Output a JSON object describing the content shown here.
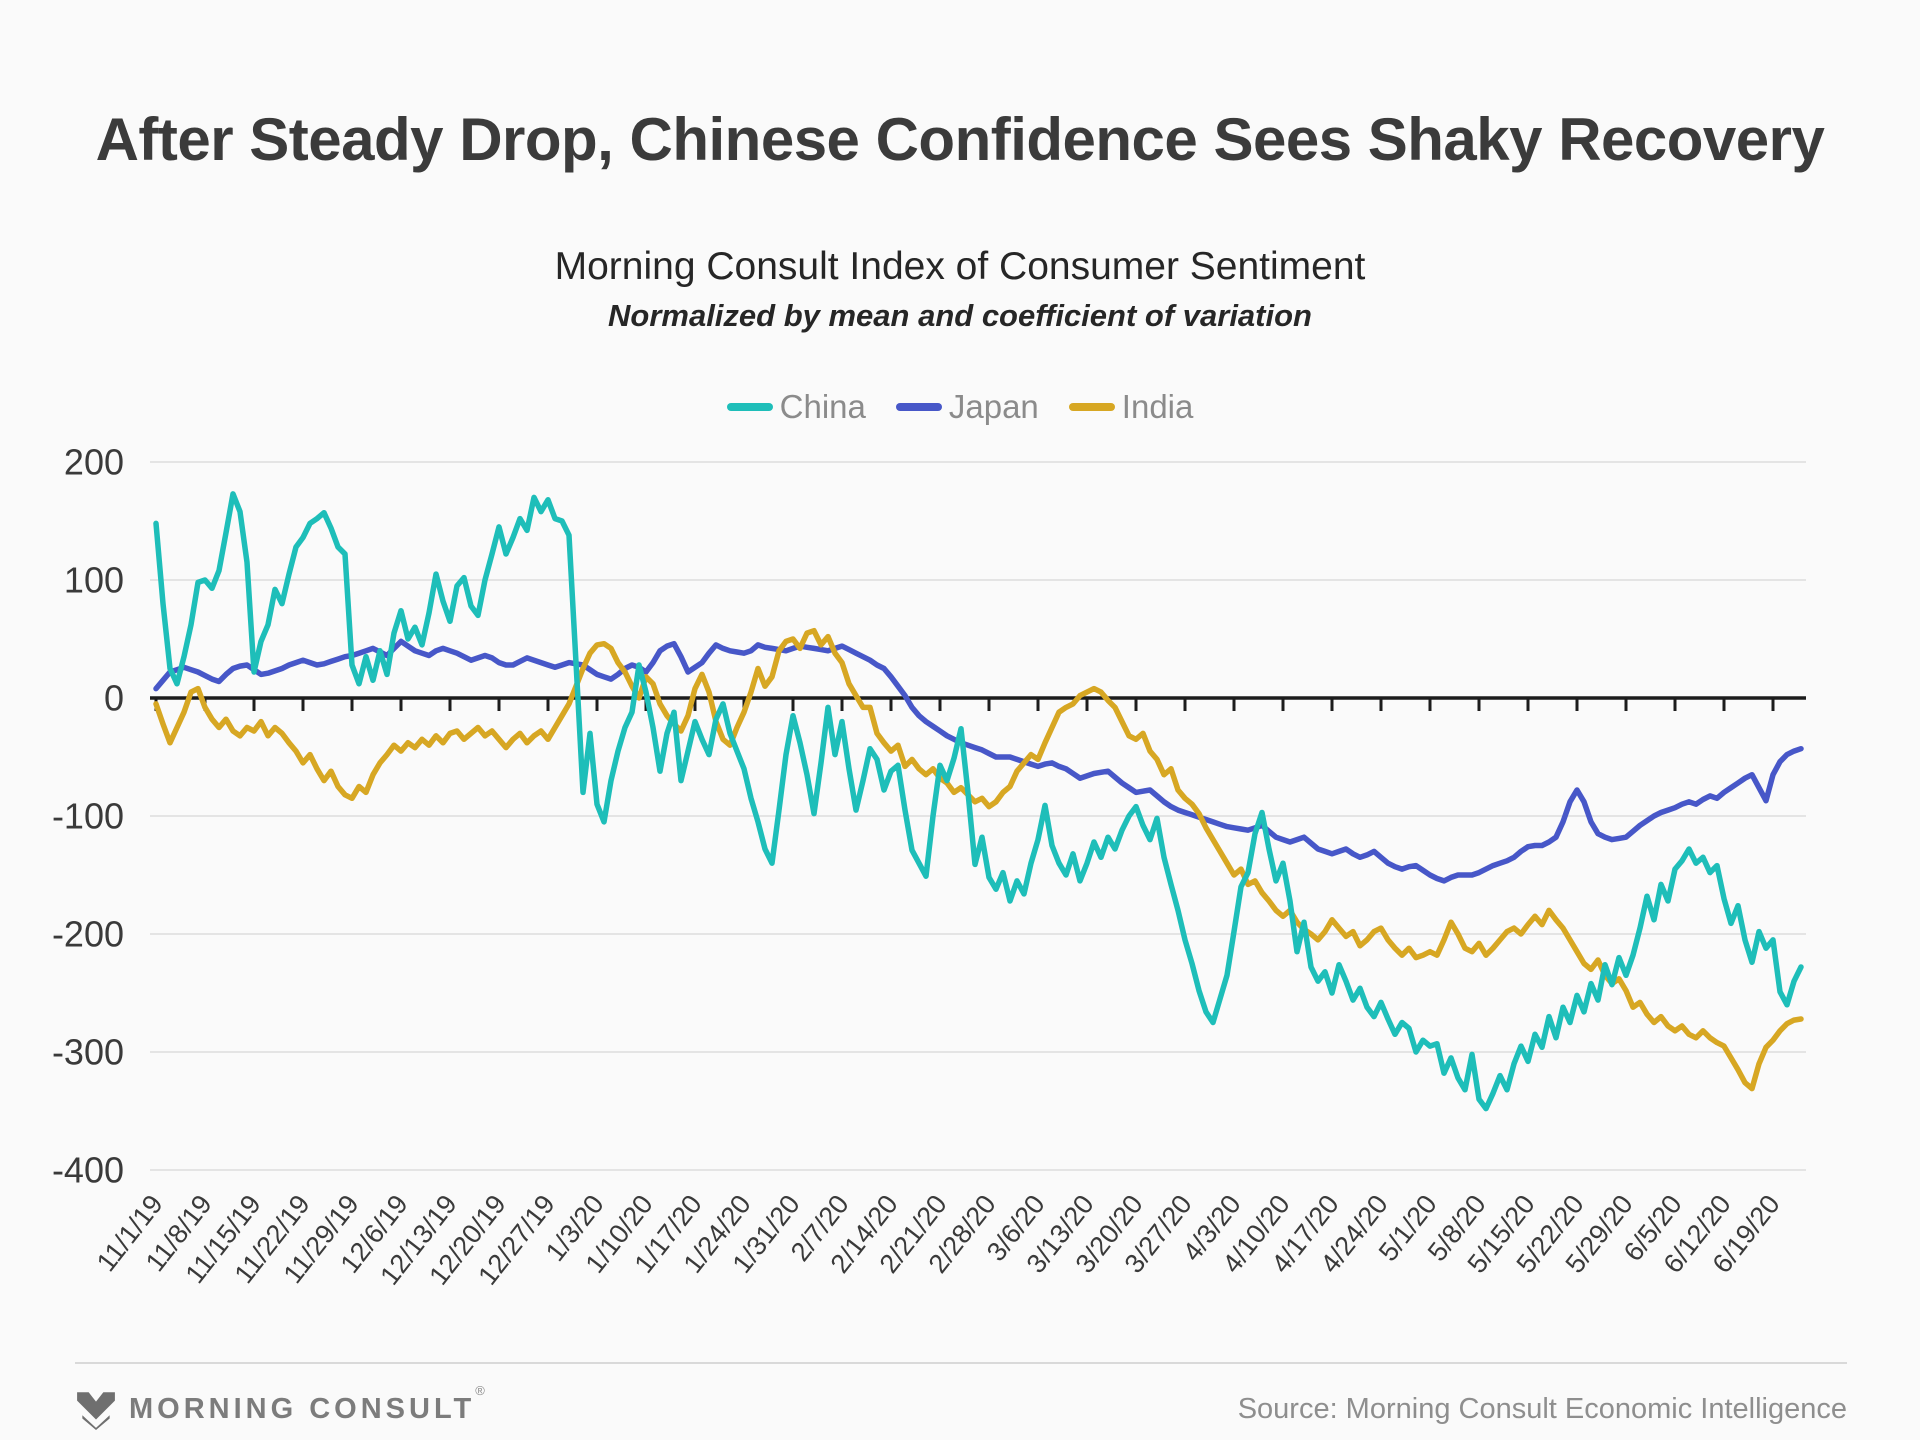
{
  "header": {
    "title": "After Steady Drop, Chinese Confidence Sees Shaky Recovery",
    "subtitle": "Morning Consult Index of Consumer Sentiment",
    "subtitle_note": "Normalized by mean and coefficient of variation"
  },
  "legend": [
    {
      "label": "China",
      "color": "#1ebeb9"
    },
    {
      "label": "Japan",
      "color": "#4757c8"
    },
    {
      "label": "India",
      "color": "#d7a723"
    }
  ],
  "footer": {
    "brand": "MORNING CONSULT",
    "registered": "®",
    "source": "Source: Morning Consult Economic Intelligence"
  },
  "colors": {
    "background": "#fafafa",
    "gridline": "#dddddd",
    "zero_axis": "#1c1c1c",
    "axis_label": "#3a3a3a"
  },
  "chart_data": {
    "type": "line",
    "title": "Morning Consult Index of Consumer Sentiment",
    "subtitle": "Normalized by mean and coefficient of variation",
    "xlabel": "",
    "ylabel": "",
    "ylim": [
      -400,
      200
    ],
    "y_ticks": [
      200,
      100,
      0,
      -100,
      -200,
      -300,
      -400
    ],
    "grid": "horizontal",
    "legend_position": "top",
    "x_tick_interval_days": 7,
    "x_tick_labels": [
      "11/1/19",
      "11/8/19",
      "11/15/19",
      "11/22/19",
      "11/29/19",
      "12/6/19",
      "12/13/19",
      "12/20/19",
      "12/27/19",
      "1/3/20",
      "1/10/20",
      "1/17/20",
      "1/24/20",
      "1/31/20",
      "2/7/20",
      "2/14/20",
      "2/21/20",
      "2/28/20",
      "3/6/20",
      "3/13/20",
      "3/20/20",
      "3/27/20",
      "4/3/20",
      "4/10/20",
      "4/17/20",
      "4/24/20",
      "5/1/20",
      "5/8/20",
      "5/15/20",
      "5/22/20",
      "5/29/20",
      "6/5/20",
      "6/12/20",
      "6/19/20"
    ],
    "series": [
      {
        "name": "China",
        "color": "#1ebeb9",
        "start_day": 0,
        "values": [
          148,
          80,
          25,
          12,
          35,
          62,
          98,
          100,
          93,
          108,
          140,
          173,
          158,
          115,
          22,
          48,
          62,
          92,
          80,
          105,
          128,
          136,
          148,
          152,
          157,
          144,
          128,
          122,
          28,
          12,
          35,
          15,
          40,
          20,
          55,
          74,
          50,
          60,
          45,
          72,
          105,
          82,
          65,
          95,
          102,
          78,
          70,
          100,
          122,
          145,
          122,
          136,
          152,
          142,
          170,
          158,
          168,
          152,
          150,
          138,
          30,
          -80,
          -30,
          -90,
          -105,
          -70,
          -45,
          -25,
          -12,
          28,
          5,
          -25,
          -62,
          -30,
          -12,
          -70,
          -45,
          -20,
          -35,
          -48,
          -18,
          -5,
          -30,
          -45,
          -60,
          -85,
          -105,
          -128,
          -140,
          -95,
          -48,
          -15,
          -38,
          -65,
          -98,
          -55,
          -8,
          -48,
          -20,
          -60,
          -95,
          -70,
          -43,
          -52,
          -78,
          -62,
          -57,
          -95,
          -129,
          -140,
          -151,
          -100,
          -57,
          -70,
          -51,
          -26,
          -80,
          -141,
          -118,
          -152,
          -162,
          -148,
          -172,
          -155,
          -166,
          -140,
          -120,
          -91,
          -125,
          -140,
          -150,
          -132,
          -155,
          -140,
          -122,
          -135,
          -118,
          -128,
          -112,
          -100,
          -92,
          -108,
          -120,
          -102,
          -135,
          -158,
          -180,
          -205,
          -225,
          -248,
          -266,
          -275,
          -255,
          -235,
          -198,
          -160,
          -148,
          -115,
          -97,
          -128,
          -155,
          -140,
          -172,
          -215,
          -190,
          -228,
          -240,
          -232,
          -250,
          -226,
          -240,
          -256,
          -246,
          -262,
          -270,
          -258,
          -272,
          -285,
          -275,
          -280,
          -300,
          -290,
          -295,
          -293,
          -318,
          -305,
          -322,
          -332,
          -302,
          -340,
          -348,
          -335,
          -320,
          -332,
          -310,
          -295,
          -308,
          -285,
          -296,
          -270,
          -288,
          -262,
          -275,
          -252,
          -266,
          -242,
          -256,
          -226,
          -243,
          -220,
          -235,
          -218,
          -195,
          -168,
          -188,
          -158,
          -172,
          -145,
          -138,
          -128,
          -140,
          -135,
          -148,
          -142,
          -170,
          -191,
          -176,
          -205,
          -224,
          -198,
          -212,
          -205,
          -249,
          -260,
          -240,
          -228
        ]
      },
      {
        "name": "Japan",
        "color": "#4757c8",
        "start_day": 0,
        "values": [
          8,
          15,
          22,
          24,
          26,
          24,
          22,
          19,
          16,
          14,
          20,
          25,
          27,
          28,
          24,
          20,
          21,
          23,
          25,
          28,
          30,
          32,
          30,
          28,
          29,
          31,
          33,
          35,
          36,
          38,
          40,
          42,
          39,
          36,
          42,
          48,
          44,
          40,
          38,
          36,
          40,
          42,
          40,
          38,
          35,
          32,
          34,
          36,
          34,
          30,
          28,
          28,
          31,
          34,
          32,
          30,
          28,
          26,
          28,
          30,
          29,
          28,
          24,
          20,
          18,
          16,
          20,
          25,
          28,
          26,
          22,
          30,
          40,
          44,
          46,
          35,
          22,
          26,
          30,
          38,
          45,
          42,
          40,
          39,
          38,
          40,
          45,
          43,
          42,
          41,
          40,
          42,
          44,
          43,
          42,
          41,
          40,
          42,
          44,
          41,
          38,
          35,
          32,
          28,
          25,
          18,
          10,
          2,
          -8,
          -15,
          -20,
          -24,
          -28,
          -32,
          -35,
          -38,
          -40,
          -42,
          -44,
          -47,
          -50,
          -50,
          -50,
          -52,
          -54,
          -56,
          -58,
          -56,
          -55,
          -58,
          -60,
          -64,
          -68,
          -66,
          -64,
          -63,
          -62,
          -67,
          -72,
          -76,
          -80,
          -79,
          -78,
          -83,
          -88,
          -92,
          -95,
          -97,
          -99,
          -101,
          -103,
          -105,
          -107,
          -109,
          -110,
          -111,
          -112,
          -110,
          -108,
          -113,
          -118,
          -120,
          -122,
          -120,
          -118,
          -123,
          -128,
          -130,
          -132,
          -130,
          -128,
          -132,
          -135,
          -133,
          -130,
          -135,
          -140,
          -143,
          -145,
          -143,
          -142,
          -146,
          -150,
          -153,
          -155,
          -152,
          -150,
          -150,
          -150,
          -148,
          -145,
          -142,
          -140,
          -138,
          -135,
          -130,
          -126,
          -125,
          -125,
          -122,
          -118,
          -105,
          -88,
          -78,
          -88,
          -105,
          -115,
          -118,
          -120,
          -119,
          -118,
          -113,
          -108,
          -104,
          -100,
          -97,
          -95,
          -93,
          -90,
          -88,
          -90,
          -86,
          -83,
          -85,
          -80,
          -76,
          -72,
          -68,
          -65,
          -76,
          -87,
          -65,
          -54,
          -48,
          -45,
          -43
        ]
      },
      {
        "name": "India",
        "color": "#d7a723",
        "start_day": 0,
        "values": [
          -5,
          -22,
          -38,
          -25,
          -12,
          5,
          8,
          -8,
          -18,
          -25,
          -18,
          -28,
          -32,
          -25,
          -28,
          -20,
          -32,
          -25,
          -30,
          -38,
          -45,
          -55,
          -48,
          -60,
          -70,
          -62,
          -75,
          -82,
          -85,
          -75,
          -80,
          -65,
          -55,
          -48,
          -40,
          -45,
          -38,
          -42,
          -35,
          -40,
          -32,
          -38,
          -30,
          -28,
          -35,
          -30,
          -25,
          -32,
          -28,
          -35,
          -42,
          -35,
          -30,
          -38,
          -32,
          -28,
          -35,
          -25,
          -15,
          -5,
          10,
          25,
          38,
          45,
          46,
          42,
          30,
          22,
          10,
          0,
          18,
          12,
          -5,
          -15,
          -22,
          -28,
          -15,
          8,
          20,
          5,
          -20,
          -35,
          -40,
          -25,
          -12,
          5,
          25,
          10,
          18,
          40,
          48,
          50,
          42,
          55,
          57,
          45,
          52,
          38,
          30,
          12,
          2,
          -8,
          -8,
          -30,
          -38,
          -45,
          -40,
          -58,
          -52,
          -60,
          -65,
          -60,
          -68,
          -72,
          -80,
          -76,
          -82,
          -88,
          -85,
          -92,
          -88,
          -80,
          -75,
          -62,
          -55,
          -48,
          -52,
          -38,
          -25,
          -12,
          -8,
          -5,
          2,
          5,
          8,
          5,
          -2,
          -8,
          -20,
          -32,
          -35,
          -30,
          -45,
          -52,
          -65,
          -60,
          -78,
          -85,
          -90,
          -98,
          -110,
          -120,
          -130,
          -140,
          -150,
          -145,
          -158,
          -155,
          -165,
          -172,
          -180,
          -185,
          -180,
          -190,
          -196,
          -200,
          -205,
          -198,
          -188,
          -195,
          -202,
          -198,
          -210,
          -205,
          -198,
          -195,
          -205,
          -212,
          -218,
          -212,
          -220,
          -218,
          -215,
          -218,
          -205,
          -190,
          -200,
          -212,
          -215,
          -208,
          -218,
          -212,
          -205,
          -198,
          -195,
          -200,
          -192,
          -185,
          -192,
          -180,
          -188,
          -195,
          -205,
          -215,
          -225,
          -230,
          -222,
          -235,
          -242,
          -238,
          -248,
          -262,
          -258,
          -268,
          -275,
          -270,
          -278,
          -282,
          -278,
          -285,
          -288,
          -282,
          -288,
          -292,
          -295,
          -305,
          -315,
          -326,
          -331,
          -310,
          -296,
          -290,
          -282,
          -276,
          -273,
          -272
        ]
      }
    ]
  }
}
